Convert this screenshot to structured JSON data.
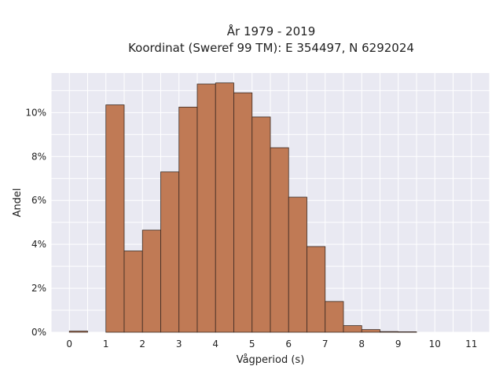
{
  "chart_data": {
    "type": "bar",
    "title_lines": [
      "År 1979 - 2019",
      "Koordinat (Sweref 99 TM): E 354497, N 6292024"
    ],
    "xlabel": "Vågperiod (s)",
    "ylabel": "Andel",
    "x_ticks": [
      0,
      1,
      2,
      3,
      4,
      5,
      6,
      7,
      8,
      9,
      10,
      11
    ],
    "y_ticks": [
      0,
      2,
      4,
      6,
      8,
      10
    ],
    "y_tick_suffix": "%",
    "xlim": [
      -0.5,
      11.5
    ],
    "ylim": [
      0,
      11.8
    ],
    "bin_width": 0.5,
    "bins": [
      {
        "x0": 0.0,
        "value": 0.05
      },
      {
        "x0": 1.0,
        "value": 10.35
      },
      {
        "x0": 1.5,
        "value": 3.7
      },
      {
        "x0": 2.0,
        "value": 4.65
      },
      {
        "x0": 2.5,
        "value": 7.3
      },
      {
        "x0": 3.0,
        "value": 10.25
      },
      {
        "x0": 3.5,
        "value": 11.3
      },
      {
        "x0": 4.0,
        "value": 11.35
      },
      {
        "x0": 4.5,
        "value": 10.9
      },
      {
        "x0": 5.0,
        "value": 9.8
      },
      {
        "x0": 5.5,
        "value": 8.4
      },
      {
        "x0": 6.0,
        "value": 6.15
      },
      {
        "x0": 6.5,
        "value": 3.9
      },
      {
        "x0": 7.0,
        "value": 1.4
      },
      {
        "x0": 7.5,
        "value": 0.3
      },
      {
        "x0": 8.0,
        "value": 0.12
      },
      {
        "x0": 8.5,
        "value": 0.03
      },
      {
        "x0": 9.0,
        "value": 0.02
      }
    ],
    "grid": true,
    "colors": {
      "background": "#e9e9f2",
      "bar_fill": "#c07a55",
      "bar_edge": "#3a2a22",
      "grid": "#ffffff"
    }
  }
}
